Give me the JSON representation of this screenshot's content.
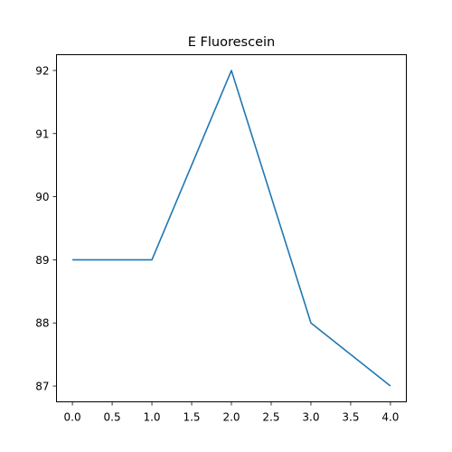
{
  "chart_data": {
    "type": "line",
    "title": "E Fluorescein",
    "xlabel": "",
    "ylabel": "",
    "x": [
      0,
      1,
      2,
      3,
      4
    ],
    "series": [
      {
        "values": [
          89,
          89,
          92,
          88,
          87
        ],
        "color": "#1f77b4"
      }
    ],
    "xlim": [
      -0.2,
      4.2
    ],
    "ylim": [
      86.75,
      92.25
    ],
    "xticks": [
      "0.0",
      "0.5",
      "1.0",
      "1.5",
      "2.0",
      "2.5",
      "3.0",
      "3.5",
      "4.0"
    ],
    "yticks": [
      "87",
      "88",
      "89",
      "90",
      "91",
      "92"
    ],
    "grid": false,
    "legend": "none"
  }
}
